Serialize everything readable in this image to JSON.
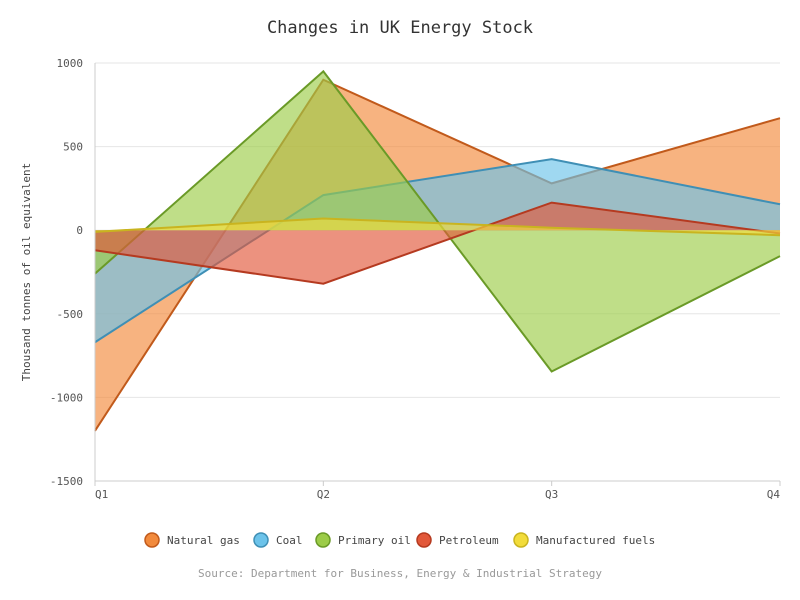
{
  "chart_data": {
    "type": "area",
    "title": "Changes in UK Energy Stock",
    "xlabel": "",
    "ylabel": "Thousand tonnes of oil equivalent",
    "categories": [
      "Q1",
      "Q2",
      "Q3",
      "Q4"
    ],
    "ylim": [
      -1500,
      1000
    ],
    "yticks": [
      1000,
      500,
      0,
      -500,
      -1000,
      -1500
    ],
    "grid": true,
    "legend_position": "bottom",
    "source": "Source: Department for Business, Energy & Industrial Strategy",
    "series": [
      {
        "name": "Natural gas",
        "values": [
          -1200,
          900,
          280,
          670
        ],
        "fill": "#f28a3c",
        "stroke": "#c15a1b"
      },
      {
        "name": "Coal",
        "values": [
          -670,
          210,
          425,
          155
        ],
        "fill": "#6cc3ea",
        "stroke": "#3f8fb5"
      },
      {
        "name": "Primary oil",
        "values": [
          -260,
          950,
          -845,
          -155
        ],
        "fill": "#9ccc48",
        "stroke": "#6a9a27"
      },
      {
        "name": "Petroleum",
        "values": [
          -120,
          -320,
          165,
          -20
        ],
        "fill": "#e2583a",
        "stroke": "#b53a20"
      },
      {
        "name": "Manufactured fuels",
        "values": [
          -10,
          70,
          15,
          -30
        ],
        "fill": "#f2dc3a",
        "stroke": "#c9b41f"
      }
    ]
  }
}
